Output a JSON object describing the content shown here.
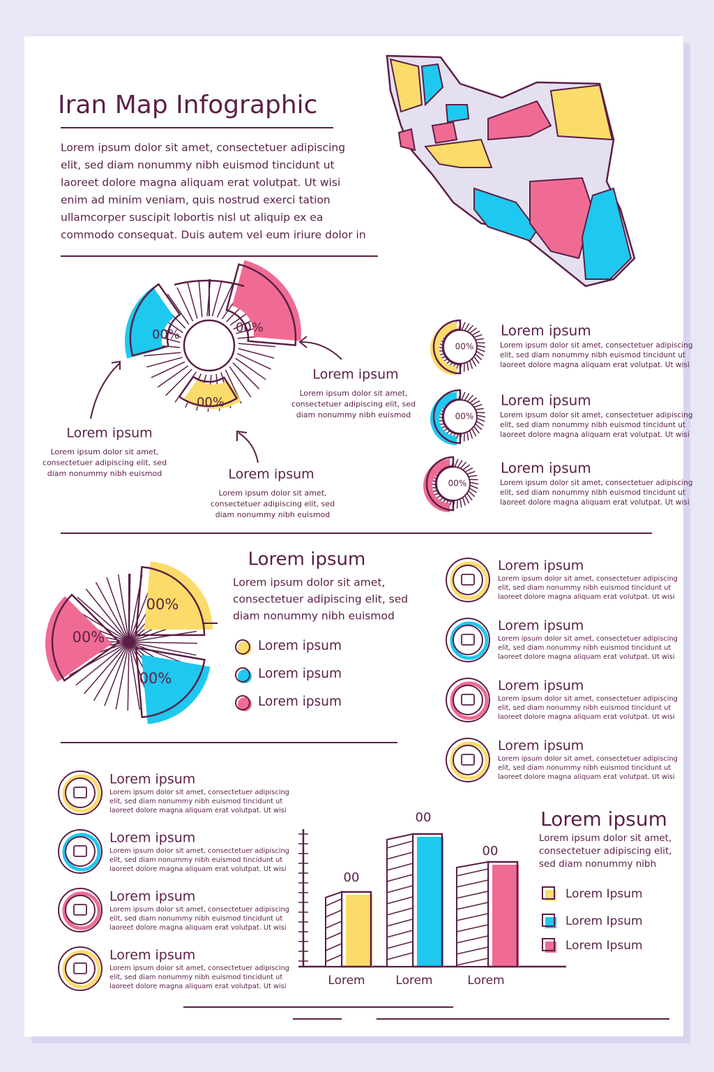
{
  "header": {
    "title": "Iran Map Infographic",
    "body": [
      "Lorem ipsum dolor sit amet, consectetuer adipiscing",
      "elit, sed diam nonummy nibh euismod tincidunt ut",
      "laoreet dolore magna aliquam erat volutpat. Ut wisi",
      "enim ad minim veniam, quis nostrud exerci tation",
      "ullamcorper suscipit lobortis nisl ut aliquip ex ea",
      "commodo consequat. Duis autem vel eum iriure dolor in"
    ]
  },
  "donut": {
    "labels": [
      "00%",
      "00%",
      "00%"
    ],
    "callouts": [
      {
        "title": "Lorem ipsum",
        "lines": [
          "Lorem ipsum dolor sit amet,",
          "consectetuer adipiscing elit, sed",
          "diam nonummy nibh euismod"
        ]
      },
      {
        "title": "Lorem ipsum",
        "lines": [
          "Lorem ipsum dolor sit amet,",
          "consectetuer adipiscing elit, sed",
          "diam nonummy nibh euismod"
        ]
      },
      {
        "title": "Lorem ipsum",
        "lines": [
          "Lorem ipsum dolor sit amet,",
          "consectetuer adipiscing elit, sed",
          "diam nonummy nibh euismod"
        ]
      }
    ]
  },
  "rings": [
    {
      "label": "00%",
      "title": "Lorem ipsum",
      "lines": [
        "Lorem ipsum dolor sit amet, consectetuer adipiscing",
        "elit, sed diam nonummy nibh euismod tincidunt ut",
        "laoreet dolore magna aliquam erat volutpat. Ut wisi"
      ]
    },
    {
      "label": "00%",
      "title": "Lorem ipsum",
      "lines": [
        "Lorem ipsum dolor sit amet, consectetuer adipiscing",
        "elit, sed diam nonummy nibh euismod tincidunt ut",
        "laoreet dolore magna aliquam erat volutpat. Ut wisi"
      ]
    },
    {
      "label": "00%",
      "title": "Lorem ipsum",
      "lines": [
        "Lorem ipsum dolor sit amet, consectetuer adipiscing",
        "elit, sed diam nonummy nibh euismod tincidunt ut",
        "laoreet dolore magna aliquam erat volutpat. Ut wisi"
      ]
    }
  ],
  "pie": {
    "labels": [
      "00%",
      "00%",
      "00%"
    ],
    "heading": "Lorem ipsum",
    "lines": [
      "Lorem ipsum dolor sit amet,",
      "consectetuer adipiscing elit, sed",
      "diam nonummy nibh euismod"
    ],
    "legend": [
      "Lorem ipsum",
      "Lorem ipsum",
      "Lorem ipsum"
    ]
  },
  "icon_list_right": [
    {
      "title": "Lorem ipsum",
      "lines": [
        "Lorem ipsum dolor sit amet, consectetuer adipiscing",
        "elit, sed diam nonummy nibh euismod tincidunt ut",
        "laoreet dolore magna aliquam erat volutpat. Ut wisi"
      ]
    },
    {
      "title": "Lorem ipsum",
      "lines": [
        "Lorem ipsum dolor sit amet, consectetuer adipiscing",
        "elit, sed diam nonummy nibh euismod tincidunt ut",
        "laoreet dolore magna aliquam erat volutpat. Ut wisi"
      ]
    },
    {
      "title": "Lorem ipsum",
      "lines": [
        "Lorem ipsum dolor sit amet, consectetuer adipiscing",
        "elit, sed diam nonummy nibh euismod tincidunt ut",
        "laoreet dolore magna aliquam erat volutpat. Ut wisi"
      ]
    },
    {
      "title": "Lorem ipsum",
      "lines": [
        "Lorem ipsum dolor sit amet, consectetuer adipiscing",
        "elit, sed diam nonummy nibh euismod tincidunt ut",
        "laoreet dolore magna aliquam erat volutpat. Ut wisi"
      ]
    }
  ],
  "icon_list_left": [
    {
      "title": "Lorem ipsum",
      "lines": [
        "Lorem ipsum dolor sit amet, consectetuer adipiscing",
        "elit, sed diam nonummy nibh euismod tincidunt ut",
        "laoreet dolore magna aliquam erat volutpat. Ut wisi"
      ]
    },
    {
      "title": "Lorem ipsum",
      "lines": [
        "Lorem ipsum dolor sit amet, consectetuer adipiscing",
        "elit, sed diam nonummy nibh euismod tincidunt ut",
        "laoreet dolore magna aliquam erat volutpat. Ut wisi"
      ]
    },
    {
      "title": "Lorem ipsum",
      "lines": [
        "Lorem ipsum dolor sit amet, consectetuer adipiscing",
        "elit, sed diam nonummy nibh euismod tincidunt ut",
        "laoreet dolore magna aliquam erat volutpat. Ut wisi"
      ]
    },
    {
      "title": "Lorem ipsum",
      "lines": [
        "Lorem ipsum dolor sit amet, consectetuer adipiscing",
        "elit, sed diam nonummy nibh euismod tincidunt ut",
        "laoreet dolore magna aliquam erat volutpat. Ut wisi"
      ]
    }
  ],
  "bar": {
    "bar_labels": [
      "00",
      "00",
      "00"
    ],
    "categories": [
      "Lorem",
      "Lorem",
      "Lorem"
    ],
    "heading": "Lorem ipsum",
    "lines": [
      "Lorem ipsum dolor sit amet,",
      "consectetuer adipiscing elit,",
      "sed diam nonummy nibh"
    ],
    "legend": [
      "Lorem Ipsum",
      "Lorem Ipsum",
      "Lorem Ipsum"
    ]
  }
}
